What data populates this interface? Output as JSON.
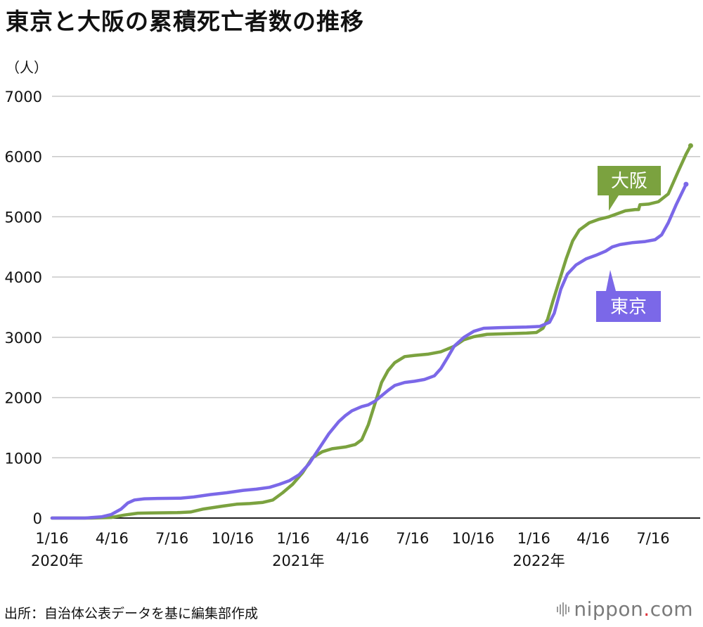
{
  "title": "東京と大阪の累積死亡者数の推移",
  "unit_label": "（人）",
  "source": "出所：自治体公表データを基に編集部作成",
  "logo": {
    "name": "nippon",
    "dot": ".",
    "suffix": "com"
  },
  "colors": {
    "osaka": "#7BA23F",
    "tokyo": "#7B68E8",
    "grid": "#c8c8c8",
    "axis": "#222222"
  },
  "chart_data": {
    "type": "line",
    "title": "東京と大阪の累積死亡者数の推移",
    "ylabel": "（人）",
    "ylim": [
      0,
      7000
    ],
    "yticks": [
      "0",
      "1000",
      "2000",
      "3000",
      "4000",
      "5000",
      "6000",
      "7000"
    ],
    "xlim": [
      0,
      960
    ],
    "xticks": [
      {
        "x": 0,
        "label": "1/16",
        "sub": "2020年"
      },
      {
        "x": 91,
        "label": "4/16",
        "sub": ""
      },
      {
        "x": 182,
        "label": "7/16",
        "sub": ""
      },
      {
        "x": 274,
        "label": "10/16",
        "sub": ""
      },
      {
        "x": 366,
        "label": "1/16",
        "sub": "2021年"
      },
      {
        "x": 456,
        "label": "4/16",
        "sub": ""
      },
      {
        "x": 547,
        "label": "7/16",
        "sub": ""
      },
      {
        "x": 639,
        "label": "10/16",
        "sub": ""
      },
      {
        "x": 731,
        "label": "1/16",
        "sub": "2022年"
      },
      {
        "x": 821,
        "label": "4/16",
        "sub": ""
      },
      {
        "x": 912,
        "label": "7/16",
        "sub": ""
      }
    ],
    "grid": true,
    "series": [
      {
        "name": "大阪",
        "label": "大阪",
        "color": "#7BA23F",
        "points": [
          [
            0,
            0
          ],
          [
            60,
            0
          ],
          [
            90,
            10
          ],
          [
            110,
            50
          ],
          [
            130,
            80
          ],
          [
            150,
            85
          ],
          [
            190,
            90
          ],
          [
            210,
            100
          ],
          [
            230,
            150
          ],
          [
            260,
            200
          ],
          [
            280,
            230
          ],
          [
            300,
            240
          ],
          [
            320,
            260
          ],
          [
            335,
            300
          ],
          [
            350,
            420
          ],
          [
            365,
            560
          ],
          [
            380,
            750
          ],
          [
            395,
            1000
          ],
          [
            410,
            1100
          ],
          [
            425,
            1150
          ],
          [
            445,
            1180
          ],
          [
            460,
            1220
          ],
          [
            470,
            1300
          ],
          [
            480,
            1550
          ],
          [
            490,
            1900
          ],
          [
            500,
            2250
          ],
          [
            510,
            2450
          ],
          [
            520,
            2580
          ],
          [
            535,
            2680
          ],
          [
            550,
            2700
          ],
          [
            570,
            2720
          ],
          [
            590,
            2760
          ],
          [
            610,
            2850
          ],
          [
            625,
            2960
          ],
          [
            640,
            3010
          ],
          [
            660,
            3050
          ],
          [
            690,
            3060
          ],
          [
            720,
            3070
          ],
          [
            735,
            3080
          ],
          [
            745,
            3150
          ],
          [
            752,
            3300
          ],
          [
            760,
            3600
          ],
          [
            770,
            3950
          ],
          [
            780,
            4300
          ],
          [
            790,
            4600
          ],
          [
            800,
            4780
          ],
          [
            815,
            4900
          ],
          [
            830,
            4960
          ],
          [
            845,
            5000
          ],
          [
            860,
            5060
          ],
          [
            870,
            5100
          ],
          [
            885,
            5120
          ],
          [
            890,
            5120
          ],
          [
            892,
            5200
          ],
          [
            905,
            5210
          ],
          [
            920,
            5250
          ],
          [
            935,
            5380
          ],
          [
            950,
            5750
          ],
          [
            962,
            6040
          ],
          [
            969,
            6180
          ]
        ]
      },
      {
        "name": "東京",
        "label": "東京",
        "color": "#7B68E8",
        "points": [
          [
            0,
            0
          ],
          [
            50,
            0
          ],
          [
            75,
            20
          ],
          [
            90,
            60
          ],
          [
            105,
            150
          ],
          [
            115,
            250
          ],
          [
            125,
            300
          ],
          [
            140,
            320
          ],
          [
            160,
            325
          ],
          [
            195,
            330
          ],
          [
            215,
            350
          ],
          [
            240,
            390
          ],
          [
            265,
            420
          ],
          [
            290,
            460
          ],
          [
            310,
            480
          ],
          [
            330,
            510
          ],
          [
            345,
            560
          ],
          [
            360,
            620
          ],
          [
            375,
            720
          ],
          [
            390,
            900
          ],
          [
            405,
            1150
          ],
          [
            420,
            1400
          ],
          [
            435,
            1600
          ],
          [
            445,
            1700
          ],
          [
            455,
            1780
          ],
          [
            470,
            1850
          ],
          [
            480,
            1880
          ],
          [
            490,
            1940
          ],
          [
            500,
            2030
          ],
          [
            510,
            2120
          ],
          [
            520,
            2200
          ],
          [
            535,
            2250
          ],
          [
            550,
            2270
          ],
          [
            565,
            2300
          ],
          [
            580,
            2360
          ],
          [
            590,
            2480
          ],
          [
            600,
            2660
          ],
          [
            610,
            2850
          ],
          [
            625,
            3000
          ],
          [
            640,
            3100
          ],
          [
            655,
            3150
          ],
          [
            680,
            3160
          ],
          [
            720,
            3170
          ],
          [
            740,
            3180
          ],
          [
            755,
            3250
          ],
          [
            762,
            3400
          ],
          [
            772,
            3800
          ],
          [
            782,
            4050
          ],
          [
            795,
            4200
          ],
          [
            810,
            4300
          ],
          [
            825,
            4360
          ],
          [
            840,
            4430
          ],
          [
            850,
            4500
          ],
          [
            862,
            4540
          ],
          [
            880,
            4570
          ],
          [
            900,
            4590
          ],
          [
            915,
            4620
          ],
          [
            925,
            4700
          ],
          [
            935,
            4900
          ],
          [
            947,
            5200
          ],
          [
            962,
            5540
          ]
        ]
      }
    ]
  }
}
